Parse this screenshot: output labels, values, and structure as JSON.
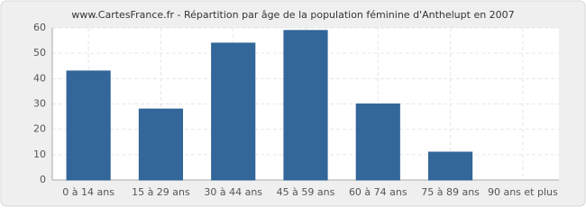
{
  "chart_data": {
    "type": "bar",
    "title": "www.CartesFrance.fr - Répartition par âge de la population féminine d'Anthelupt en 2007",
    "categories": [
      "0 à 14 ans",
      "15 à 29 ans",
      "30 à 44 ans",
      "45 à 59 ans",
      "60 à 74 ans",
      "75 à 89 ans",
      "90 ans et plus"
    ],
    "values": [
      43,
      28,
      54,
      59,
      30,
      11,
      0
    ],
    "color": "#336699",
    "ylim": [
      0,
      60
    ],
    "yticks": [
      0,
      10,
      20,
      30,
      40,
      50,
      60
    ],
    "grid": true
  }
}
